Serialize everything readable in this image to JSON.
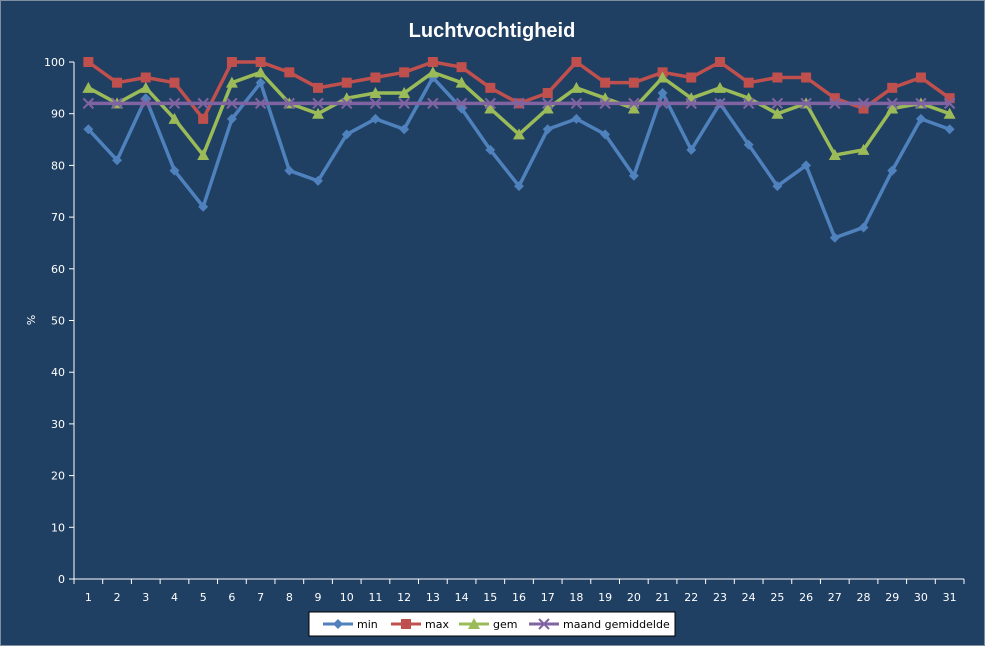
{
  "chart_data": {
    "type": "line",
    "title": "Luchtvochtigheid",
    "xlabel": "",
    "ylabel": "%",
    "ylim": [
      0,
      100
    ],
    "yticks": [
      0,
      10,
      20,
      30,
      40,
      50,
      60,
      70,
      80,
      90,
      100
    ],
    "categories": [
      "1",
      "2",
      "3",
      "4",
      "5",
      "6",
      "7",
      "8",
      "9",
      "10",
      "11",
      "12",
      "13",
      "14",
      "15",
      "16",
      "17",
      "18",
      "19",
      "20",
      "21",
      "22",
      "23",
      "24",
      "25",
      "26",
      "27",
      "28",
      "29",
      "30",
      "31"
    ],
    "grid": false,
    "legend_position": "bottom",
    "series": [
      {
        "name": "min",
        "color": "#4f81bd",
        "marker": "diamond",
        "values": [
          87,
          81,
          93,
          79,
          72,
          89,
          96,
          79,
          77,
          86,
          89,
          87,
          97,
          91,
          83,
          76,
          87,
          89,
          86,
          78,
          94,
          83,
          92,
          84,
          76,
          80,
          66,
          68,
          79,
          89,
          87
        ]
      },
      {
        "name": "max",
        "color": "#c0504d",
        "marker": "square",
        "values": [
          100,
          96,
          97,
          96,
          89,
          100,
          100,
          98,
          95,
          96,
          97,
          98,
          100,
          99,
          95,
          92,
          94,
          100,
          96,
          96,
          98,
          97,
          100,
          96,
          97,
          97,
          93,
          91,
          95,
          97,
          93
        ]
      },
      {
        "name": "gem",
        "color": "#9bbb59",
        "marker": "triangle",
        "values": [
          95,
          92,
          95,
          89,
          82,
          96,
          98,
          92,
          90,
          93,
          94,
          94,
          98,
          96,
          91,
          86,
          91,
          95,
          93,
          91,
          97,
          93,
          95,
          93,
          90,
          92,
          82,
          83,
          91,
          92,
          90
        ]
      },
      {
        "name": "maand gemiddelde",
        "color": "#8064a2",
        "marker": "x",
        "values": [
          92,
          92,
          92,
          92,
          92,
          92,
          92,
          92,
          92,
          92,
          92,
          92,
          92,
          92,
          92,
          92,
          92,
          92,
          92,
          92,
          92,
          92,
          92,
          92,
          92,
          92,
          92,
          92,
          92,
          92,
          92
        ]
      }
    ]
  }
}
